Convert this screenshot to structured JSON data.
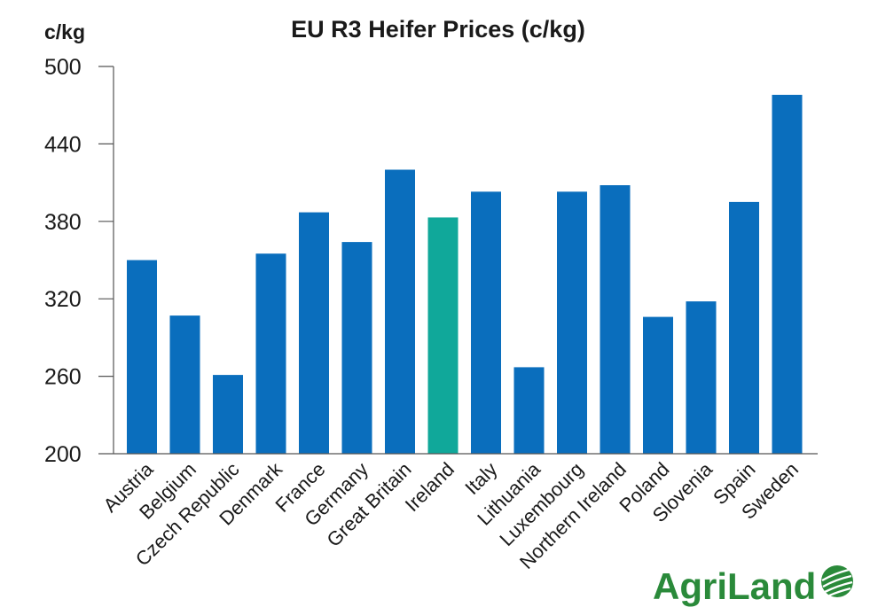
{
  "chart_data": {
    "type": "bar",
    "title": "EU R3 Heifer Prices (c/kg)",
    "ylabel": "c/kg",
    "xlabel": "",
    "ylim": [
      200,
      500
    ],
    "yticks": [
      200,
      260,
      320,
      380,
      440,
      500
    ],
    "categories": [
      "Austria",
      "Belgium",
      "Czech Republic",
      "Denmark",
      "France",
      "Germany",
      "Great Britain",
      "Ireland",
      "Italy",
      "Lithuania",
      "Luxembourg",
      "Northern Ireland",
      "Poland",
      "Slovenia",
      "Spain",
      "Sweden"
    ],
    "values": [
      350,
      307,
      261,
      355,
      387,
      364,
      420,
      383,
      403,
      267,
      403,
      408,
      306,
      318,
      395,
      478
    ],
    "highlight": "Ireland",
    "grid": false,
    "colors": {
      "bar": "#0a6ebd",
      "highlight": "#10a89a",
      "axis": "#555555",
      "text": "#1a1a1a"
    }
  },
  "logo": {
    "text": "AgriLand",
    "color": "#2a8a3a",
    "icon": "globe-leaf-icon"
  }
}
